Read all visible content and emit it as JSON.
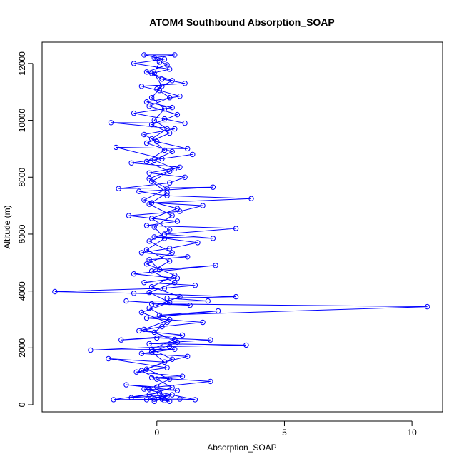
{
  "chart_data": {
    "type": "line",
    "title": "ATOM4 Southbound Absorption_SOAP",
    "xlabel": "Absorption_SOAP",
    "ylabel": "Altitude (m)",
    "xlim": [
      -4.5,
      11.2
    ],
    "ylim": [
      -250,
      12750
    ],
    "xticks": [
      0,
      5,
      10
    ],
    "yticks": [
      0,
      2000,
      4000,
      6000,
      8000,
      10000,
      12000
    ],
    "grid": false,
    "legend": "none",
    "markers": "open-circle",
    "series": [
      {
        "color": "#0000ff",
        "points": [
          [
            0.3,
            150
          ],
          [
            -0.1,
            200
          ],
          [
            0.5,
            120
          ],
          [
            0.2,
            300
          ],
          [
            -0.4,
            180
          ],
          [
            0.6,
            350
          ],
          [
            -1.0,
            250
          ],
          [
            0.1,
            420
          ],
          [
            -1.7,
            180
          ],
          [
            0.9,
            200
          ],
          [
            1.5,
            180
          ],
          [
            -0.5,
            550
          ],
          [
            0.8,
            500
          ],
          [
            -1.2,
            700
          ],
          [
            0.0,
            620
          ],
          [
            2.1,
            820
          ],
          [
            -0.2,
            950
          ],
          [
            1.0,
            1000
          ],
          [
            -0.8,
            1150
          ],
          [
            0.4,
            1300
          ],
          [
            -1.9,
            1620
          ],
          [
            0.3,
            1500
          ],
          [
            1.2,
            1700
          ],
          [
            -0.6,
            1800
          ],
          [
            0.7,
            1950
          ],
          [
            -2.6,
            1920
          ],
          [
            0.5,
            2050
          ],
          [
            3.5,
            2100
          ],
          [
            -0.3,
            2150
          ],
          [
            2.1,
            2280
          ],
          [
            0.0,
            2350
          ],
          [
            -1.4,
            2280
          ],
          [
            1.0,
            2450
          ],
          [
            -0.7,
            2600
          ],
          [
            0.2,
            2750
          ],
          [
            1.8,
            2900
          ],
          [
            -0.4,
            3050
          ],
          [
            2.4,
            3300
          ],
          [
            0.1,
            3150
          ],
          [
            10.6,
            3450
          ],
          [
            -0.2,
            3550
          ],
          [
            1.3,
            3500
          ],
          [
            -1.2,
            3650
          ],
          [
            2.0,
            3650
          ],
          [
            0.4,
            3750
          ],
          [
            3.1,
            3800
          ],
          [
            -0.9,
            3920
          ],
          [
            -4.0,
            3980
          ],
          [
            0.3,
            4100
          ],
          [
            1.5,
            4200
          ],
          [
            -0.5,
            4300
          ],
          [
            0.8,
            4450
          ],
          [
            -0.9,
            4600
          ],
          [
            2.3,
            4900
          ],
          [
            0.1,
            4750
          ],
          [
            -0.3,
            5100
          ],
          [
            1.2,
            5200
          ],
          [
            -0.6,
            5350
          ],
          [
            0.5,
            5500
          ],
          [
            1.6,
            5700
          ],
          [
            -0.1,
            5900
          ],
          [
            2.2,
            5850
          ],
          [
            0.3,
            6000
          ],
          [
            3.1,
            6200
          ],
          [
            -0.4,
            6300
          ],
          [
            0.8,
            6450
          ],
          [
            -1.1,
            6650
          ],
          [
            0.9,
            6800
          ],
          [
            1.8,
            7000
          ],
          [
            -0.2,
            7100
          ],
          [
            3.7,
            7250
          ],
          [
            0.4,
            7350
          ],
          [
            -0.7,
            7500
          ],
          [
            2.2,
            7650
          ],
          [
            -1.5,
            7600
          ],
          [
            0.5,
            7800
          ],
          [
            1.1,
            8000
          ],
          [
            -0.3,
            8150
          ],
          [
            0.9,
            8350
          ],
          [
            -1.0,
            8500
          ],
          [
            1.4,
            8800
          ],
          [
            0.2,
            8650
          ],
          [
            -1.6,
            9050
          ],
          [
            1.2,
            9000
          ],
          [
            0.0,
            9250
          ],
          [
            -0.5,
            9500
          ],
          [
            0.7,
            9700
          ],
          [
            -1.8,
            9920
          ],
          [
            1.1,
            9900
          ],
          [
            0.3,
            10050
          ],
          [
            -0.9,
            10250
          ],
          [
            0.6,
            10450
          ],
          [
            -0.4,
            10650
          ],
          [
            0.9,
            10850
          ],
          [
            0.1,
            11050
          ],
          [
            -0.6,
            11200
          ],
          [
            1.1,
            11300
          ],
          [
            0.2,
            11450
          ],
          [
            -0.2,
            11650
          ],
          [
            0.5,
            11800
          ],
          [
            -0.9,
            12000
          ],
          [
            0.3,
            12150
          ],
          [
            -0.5,
            12300
          ],
          [
            0.7,
            12300
          ],
          [
            -0.1,
            12200
          ],
          [
            0.4,
            11950
          ],
          [
            -0.4,
            11700
          ],
          [
            0.6,
            11400
          ],
          [
            0.0,
            11100
          ],
          [
            0.5,
            10800
          ],
          [
            -0.3,
            10500
          ],
          [
            0.8,
            10200
          ],
          [
            -0.2,
            9850
          ],
          [
            0.5,
            9550
          ],
          [
            -0.4,
            9200
          ],
          [
            0.6,
            8900
          ],
          [
            -0.1,
            8600
          ],
          [
            0.7,
            8300
          ],
          [
            -0.3,
            7950
          ],
          [
            0.4,
            7600
          ],
          [
            -0.5,
            7200
          ],
          [
            0.8,
            6900
          ],
          [
            -0.2,
            6550
          ],
          [
            0.5,
            6150
          ],
          [
            -0.3,
            5750
          ],
          [
            0.6,
            5350
          ],
          [
            -0.4,
            4950
          ],
          [
            0.7,
            4550
          ],
          [
            -0.2,
            4150
          ],
          [
            0.9,
            3800
          ],
          [
            -0.3,
            3400
          ],
          [
            0.5,
            3000
          ],
          [
            -0.5,
            2650
          ],
          [
            0.7,
            2300
          ],
          [
            -0.2,
            1950
          ],
          [
            0.6,
            1600
          ],
          [
            -0.4,
            1250
          ],
          [
            0.5,
            900
          ],
          [
            -0.3,
            550
          ],
          [
            0.4,
            300
          ],
          [
            -0.1,
            120
          ],
          [
            0.2,
            200
          ],
          [
            -0.3,
            350
          ],
          [
            0.6,
            600
          ],
          [
            0.0,
            900
          ],
          [
            -0.6,
            1200
          ],
          [
            0.3,
            1500
          ],
          [
            -0.2,
            1850
          ],
          [
            0.8,
            2200
          ],
          [
            -0.1,
            2550
          ],
          [
            0.4,
            2900
          ],
          [
            -0.6,
            3250
          ],
          [
            0.5,
            3600
          ],
          [
            -0.3,
            3950
          ],
          [
            0.7,
            4300
          ],
          [
            -0.2,
            4700
          ],
          [
            0.5,
            5050
          ],
          [
            -0.4,
            5450
          ],
          [
            0.3,
            5850
          ],
          [
            -0.1,
            6250
          ],
          [
            0.6,
            6650
          ],
          [
            -0.3,
            7050
          ],
          [
            0.4,
            7450
          ],
          [
            -0.2,
            7850
          ],
          [
            0.5,
            8200
          ],
          [
            -0.4,
            8550
          ],
          [
            0.3,
            8950
          ],
          [
            -0.2,
            9350
          ],
          [
            0.4,
            9700
          ],
          [
            -0.1,
            10000
          ],
          [
            0.3,
            10400
          ],
          [
            -0.2,
            10800
          ],
          [
            0.2,
            11200
          ],
          [
            -0.1,
            11650
          ],
          [
            0.1,
            12050
          ]
        ]
      }
    ]
  }
}
